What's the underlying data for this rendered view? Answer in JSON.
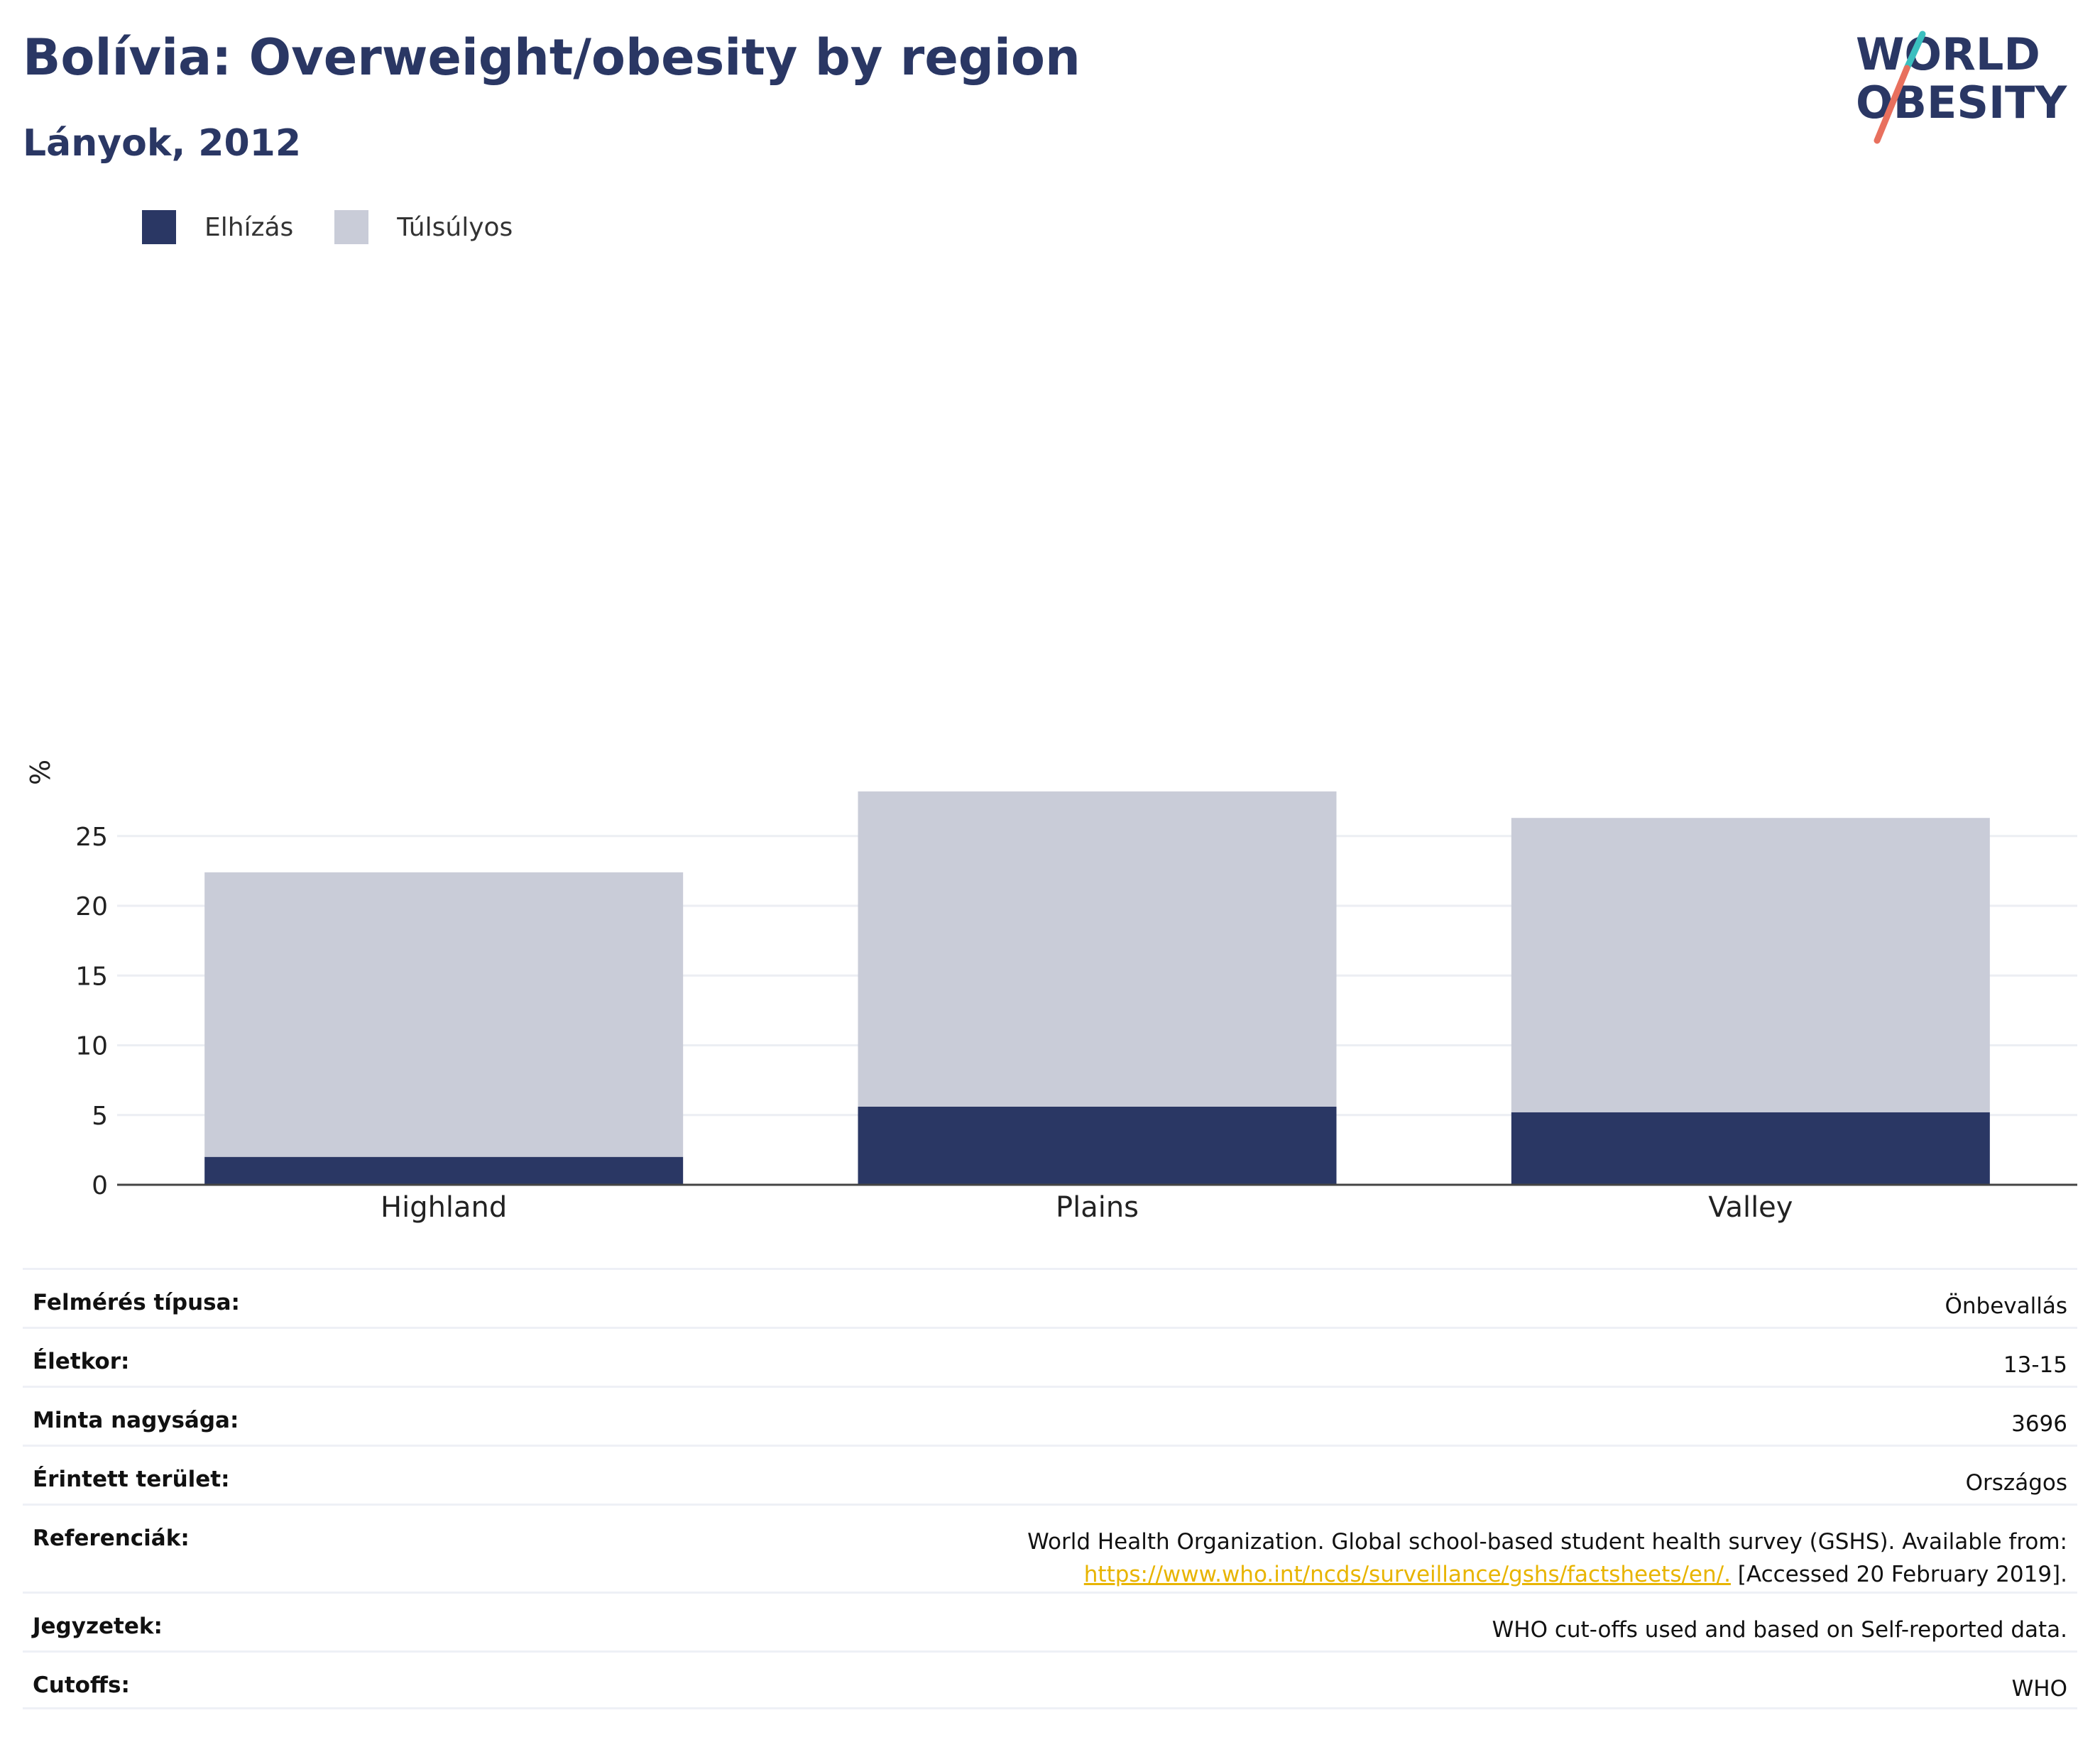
{
  "header": {
    "title": "Bolívia: Overweight/obesity by region",
    "subtitle": "Lányok, 2012"
  },
  "logo": {
    "line1": "WORLD",
    "line2": "OBESITY"
  },
  "colors": {
    "obesity": "#2a3764",
    "overweight": "#c9ccd8",
    "accent_teal": "#3bbfbf",
    "accent_coral": "#e8705e",
    "link": "#e8b400"
  },
  "chart_data": {
    "type": "bar",
    "stacked": true,
    "categories": [
      "Highland",
      "Plains",
      "Valley"
    ],
    "series": [
      {
        "name": "Elhízás",
        "values": [
          2.0,
          5.6,
          5.2
        ]
      },
      {
        "name": "Túlsúlyos",
        "values": [
          20.4,
          22.6,
          21.1
        ]
      }
    ],
    "ylabel": "%",
    "ylim": [
      0,
      30
    ],
    "yticks": [
      0,
      5,
      10,
      15,
      20,
      25
    ],
    "grid": true,
    "legend_position": "top-left"
  },
  "meta": [
    {
      "key": "Felmérés típusa:",
      "value": "Önbevallás"
    },
    {
      "key": "Életkor:",
      "value": "13-15"
    },
    {
      "key": "Minta nagysága:",
      "value": "3696"
    },
    {
      "key": "Érintett terület:",
      "value": "Országos"
    },
    {
      "key": "Referenciák:",
      "value_line1": "World Health Organization. Global school-based student health survey (GSHS). Available from:",
      "link": "https://www.who.int/ncds/surveillance/gshs/factsheets/en/.",
      "value_line2": " [Accessed 20 February 2019]."
    },
    {
      "key": "Jegyzetek:",
      "value": "WHO cut-offs used and based on Self-reported data."
    },
    {
      "key": "Cutoffs:",
      "value": "WHO"
    }
  ]
}
